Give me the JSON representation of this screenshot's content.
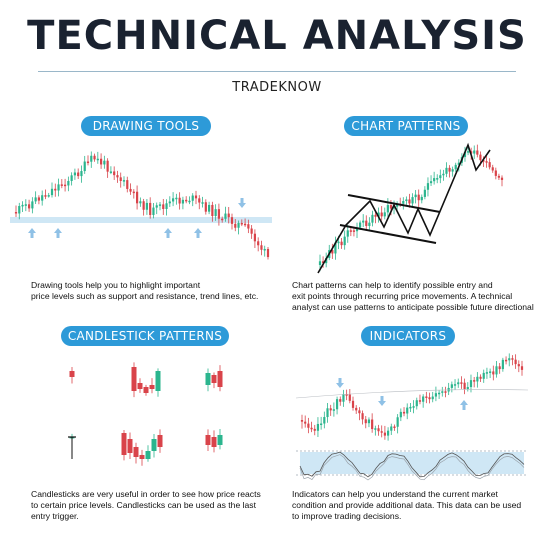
{
  "header": {
    "title": "TECHNICAL ANALYSIS",
    "subtitle": "TRADEKNOW"
  },
  "colors": {
    "accent": "#2d9ad8",
    "bull": "#2bb58e",
    "bear": "#d9434a",
    "support_band": "#cfe7f5",
    "arrow": "#8fc1e6",
    "pattern_line": "#111111"
  },
  "sections": {
    "drawing_tools": {
      "label": "DRAWING TOOLS",
      "lines": [
        "Drawing tools help you to highlight important",
        "price levels such as support and resistance, trend lines, etc."
      ]
    },
    "chart_patterns": {
      "label": "CHART PATTERNS",
      "lines": [
        "Chart patterns can help to identify possible entry and",
        "exit points through recurring price movements. A technical",
        "analyst can use patterns to anticipate possible future directional"
      ]
    },
    "candlestick_patterns": {
      "label": "CANDLESTICK PATTERNS",
      "lines": [
        "Candlesticks are very useful in order to see how price reacts",
        "to certain price levels. Candlesticks can be used as the last",
        "entry trigger."
      ]
    },
    "indicators": {
      "label": "INDICATORS",
      "lines": [
        "Indicators can help you understand the current market",
        "condition and provide additional data. This data can be used",
        "to improve trading decisions."
      ]
    }
  }
}
